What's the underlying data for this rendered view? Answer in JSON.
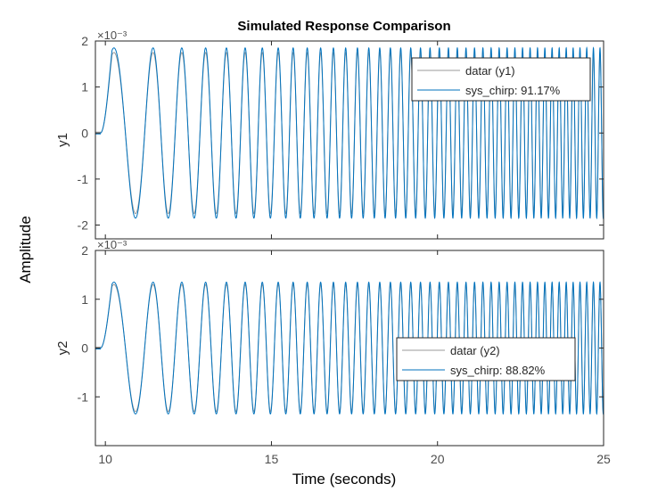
{
  "chart_data": {
    "type": "line",
    "title": "Simulated Response Comparison",
    "xlabel": "Time (seconds)",
    "ylabel": "Amplitude",
    "xlim": [
      9.7,
      25
    ],
    "x_ticks": [
      10,
      15,
      20,
      25
    ],
    "x_tick_labels": [
      "10",
      "15",
      "20",
      "25"
    ],
    "chirp_start": 9.85,
    "subplots": [
      {
        "id": "y1",
        "ylabel": "y1",
        "exponent_label": "×10⁻³",
        "ylim": [
          -2.3,
          2.0
        ],
        "y_ticks": [
          -2,
          -1,
          0,
          1,
          2
        ],
        "y_tick_labels": [
          "-2",
          "-1",
          "0",
          "1",
          "2"
        ],
        "initial_level": 0.0,
        "series": [
          {
            "name": "datar (y1)",
            "color": "#999999",
            "amplitude": 1.75,
            "initial_offset": 0.02
          },
          {
            "name": "sys_chirp: 91.17%",
            "color": "#0072BD",
            "amplitude": 1.85,
            "initial_offset": -0.02
          }
        ],
        "legend_location": "northeast"
      },
      {
        "id": "y2",
        "ylabel": "y2",
        "exponent_label": "×10⁻³",
        "ylim": [
          -2.0,
          2.0
        ],
        "y_ticks": [
          -1,
          0,
          1,
          2
        ],
        "y_tick_labels": [
          "-1",
          "0",
          "1",
          "2"
        ],
        "initial_level": 0.0,
        "series": [
          {
            "name": "datar (y2)",
            "color": "#999999",
            "amplitude": 1.3,
            "initial_offset": 0.02
          },
          {
            "name": "sys_chirp: 88.82%",
            "color": "#0072BD",
            "amplitude": 1.35,
            "initial_offset": -0.02
          }
        ],
        "legend_location": "east"
      }
    ]
  }
}
